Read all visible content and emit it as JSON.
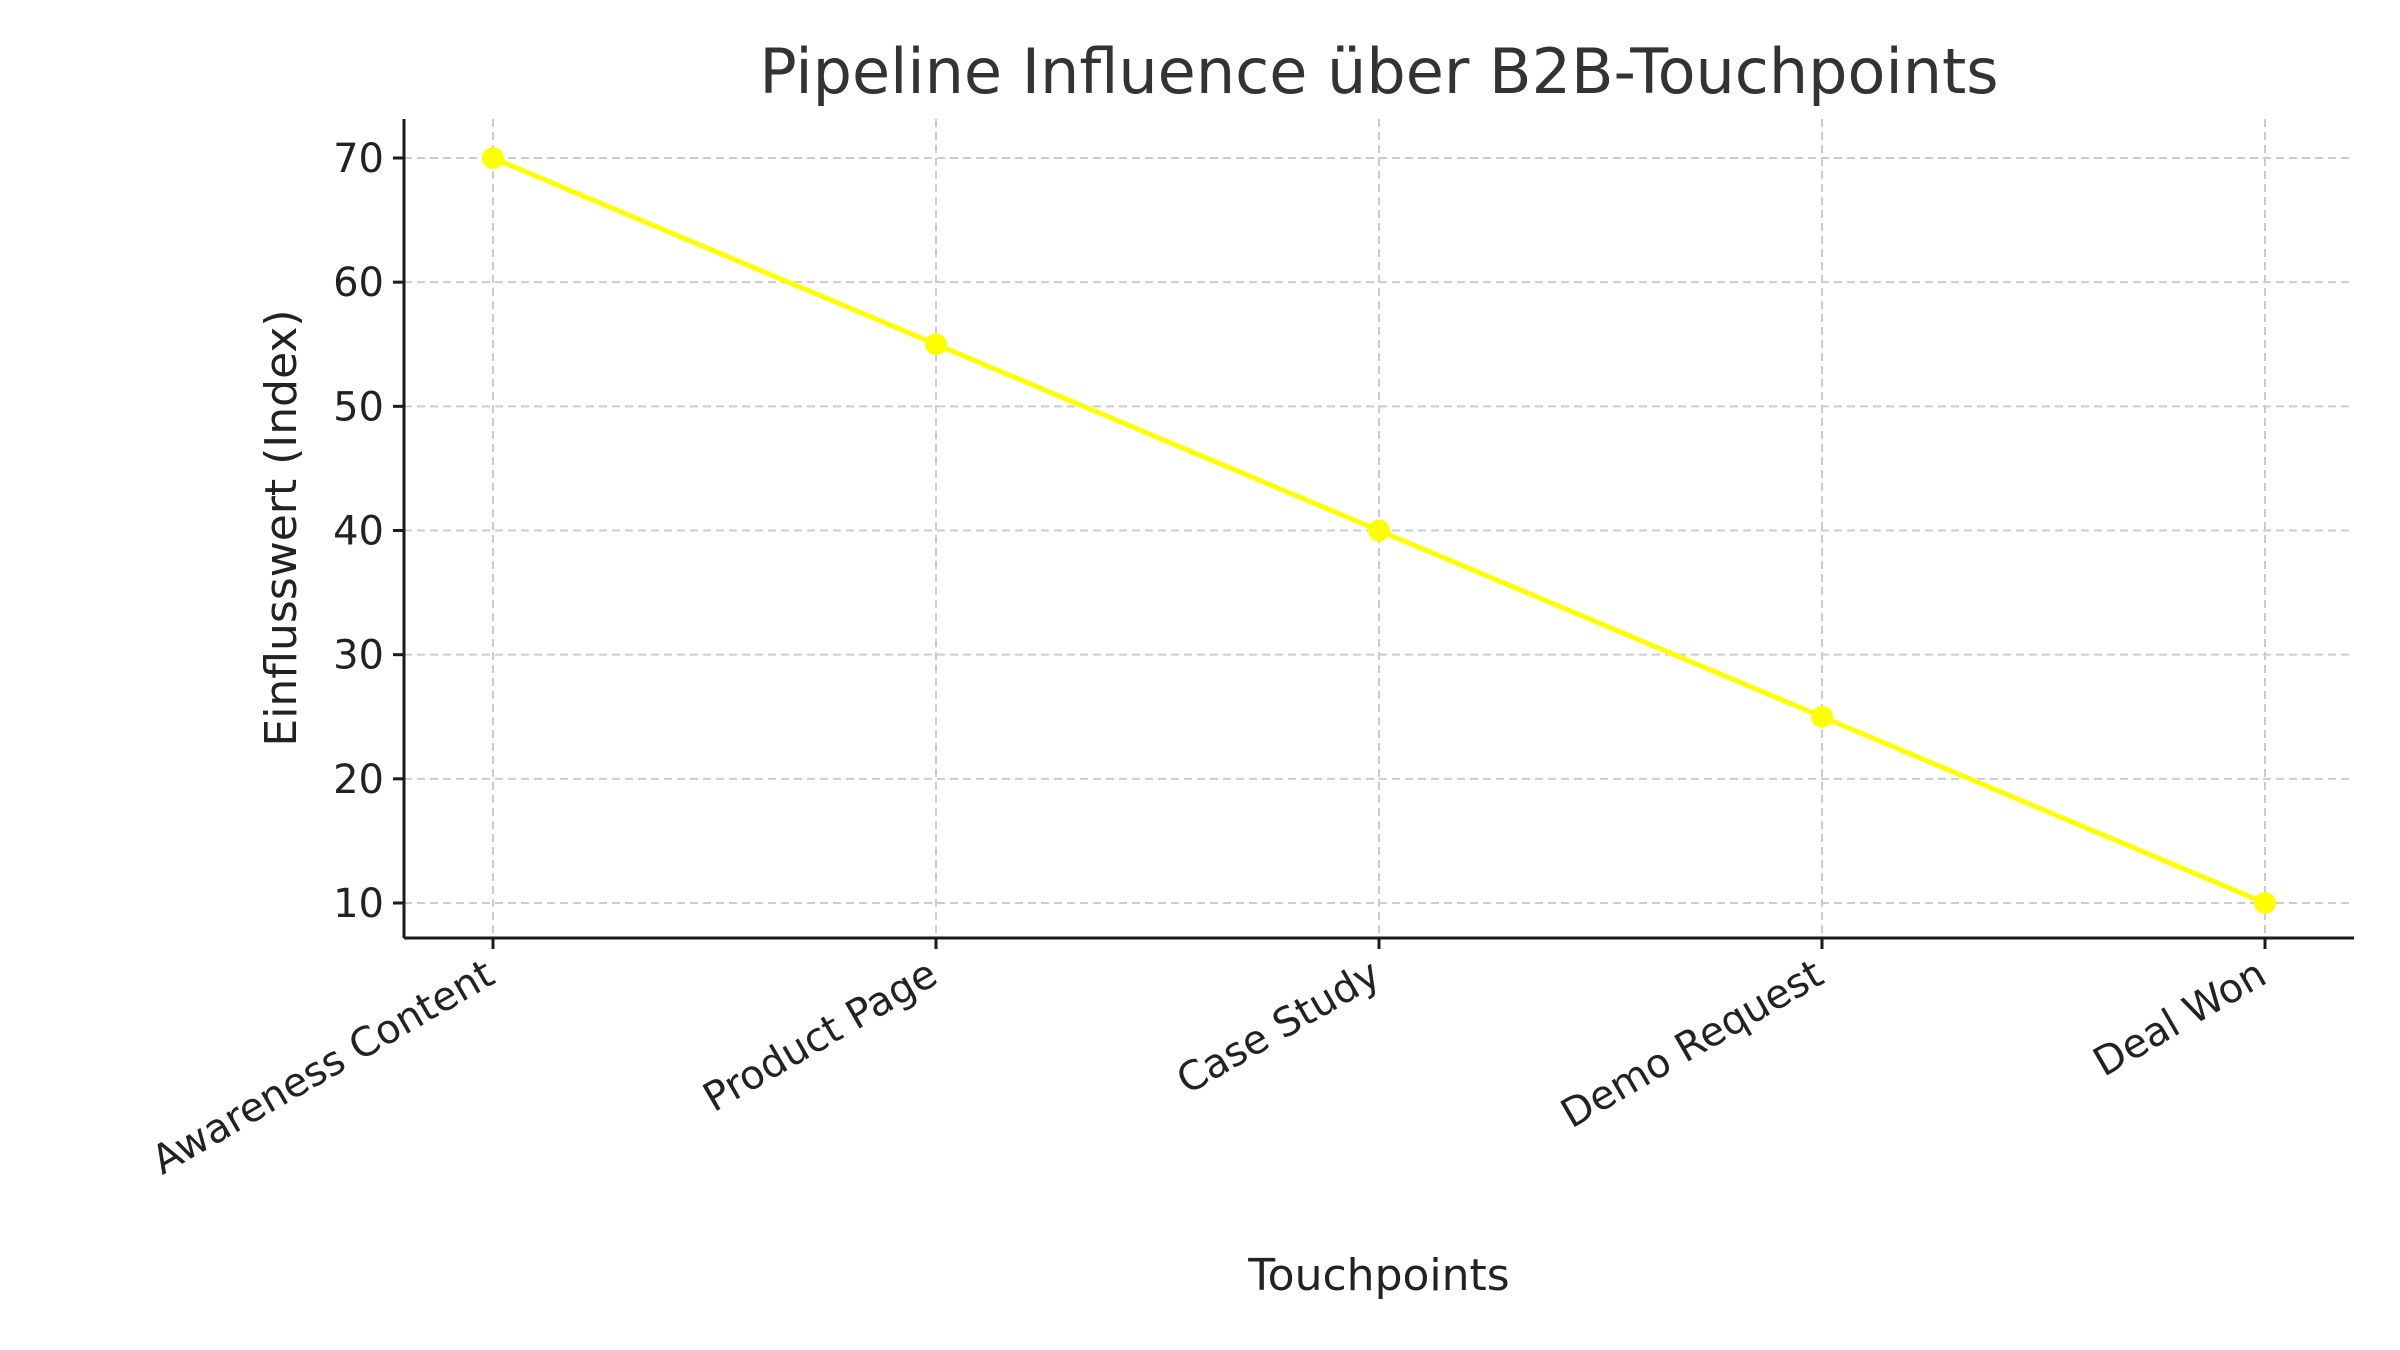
{
  "chart_data": {
    "type": "line",
    "title": "Pipeline Influence über B2B-Touchpoints",
    "xlabel": "Touchpoints",
    "ylabel": "Einflusswert (Index)",
    "categories": [
      "Awareness Content",
      "Product Page",
      "Case Study",
      "Demo Request",
      "Deal Won"
    ],
    "series": [
      {
        "name": "Einflusswert",
        "values": [
          70,
          55,
          40,
          25,
          10
        ],
        "color": "#ffff00",
        "marker": "circle"
      }
    ],
    "yticks": [
      10,
      20,
      30,
      40,
      50,
      60,
      70
    ],
    "ylim": [
      7,
      73
    ],
    "grid": true,
    "grid_style": "dashed",
    "legend": null,
    "xtick_rotation": 30
  },
  "colors": {
    "line": "#ffff00",
    "grid": "#cccccc",
    "axis": "#1a1a1a",
    "text": "#222222",
    "title": "#333333"
  }
}
